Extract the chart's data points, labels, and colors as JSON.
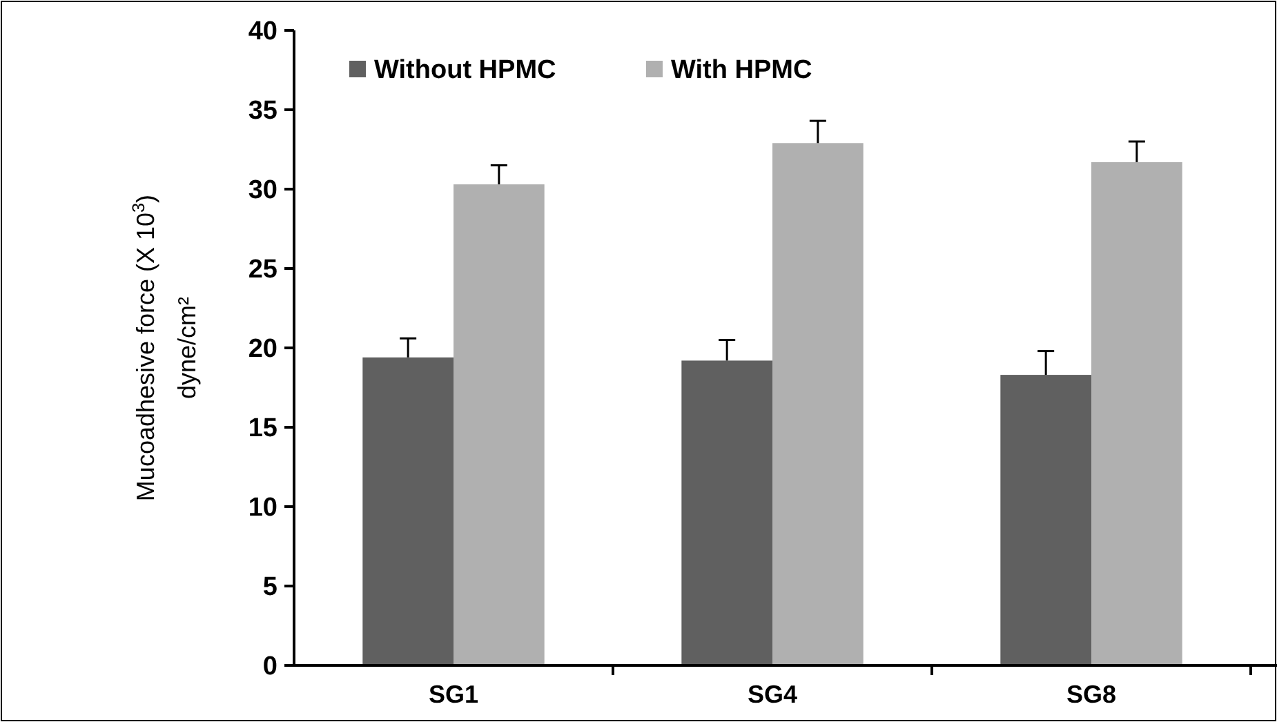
{
  "chart_data": {
    "type": "bar",
    "ylabel": "Mucoadhesive force (X 10$^{3}$)\ndyne/cm²",
    "categories": [
      "SG1",
      "SG4",
      "SG8"
    ],
    "series": [
      {
        "name": "Without HPMC",
        "color": "#606060",
        "values": [
          19.4,
          19.2,
          18.3
        ],
        "errors": [
          [
            19.4,
            20.6
          ],
          [
            19.2,
            20.5
          ],
          [
            18.3,
            19.8
          ]
        ]
      },
      {
        "name": "With HPMC",
        "color": "#b0b0b0",
        "values": [
          30.3,
          32.9,
          31.7
        ],
        "errors": [
          [
            30.3,
            31.5
          ],
          [
            32.9,
            34.3
          ],
          [
            31.7,
            33.0
          ]
        ]
      }
    ],
    "ylim": [
      0,
      40
    ],
    "yticks": [
      0,
      5,
      10,
      15,
      20,
      25,
      30,
      35,
      40
    ],
    "grid": false,
    "legend": "top left"
  }
}
